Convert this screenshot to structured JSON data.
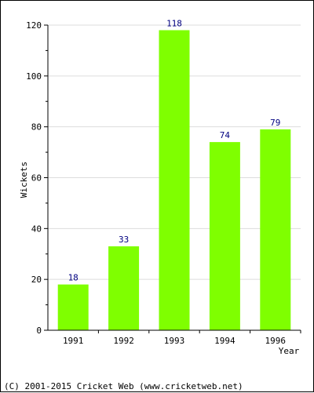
{
  "chart_data": {
    "type": "bar",
    "categories": [
      "1991",
      "1992",
      "1993",
      "1994",
      "1996"
    ],
    "values": [
      18,
      33,
      118,
      74,
      79
    ],
    "title": "",
    "xlabel": "Year",
    "ylabel": "Wickets",
    "ylim": [
      0,
      120
    ],
    "yticks": [
      0,
      20,
      40,
      60,
      80,
      100,
      120
    ],
    "grid": true,
    "data_labels": true,
    "colors": {
      "bar": "#7fff00",
      "value_label": "#000080",
      "grid": "#dddddd",
      "axis": "#000000"
    }
  },
  "footer": {
    "copyright": "(C) 2001-2015 Cricket Web (www.cricketweb.net)"
  }
}
